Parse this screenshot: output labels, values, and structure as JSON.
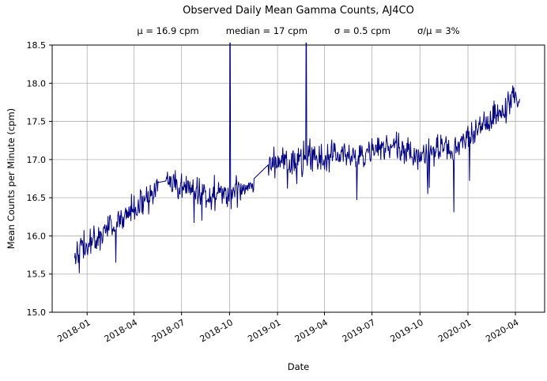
{
  "title": "Observed Daily Mean Gamma Counts, AJ4CO",
  "stats_display": [
    "μ = 16.9 cpm",
    "median = 17 cpm",
    "σ = 0.5 cpm",
    "σ/μ = 3%"
  ],
  "chart_data": {
    "type": "line",
    "title": "Observed Daily Mean Gamma Counts, AJ4CO",
    "subtitle_stats": {
      "mu": "16.9 cpm",
      "median": "17 cpm",
      "sigma": "0.5 cpm",
      "sigma_over_mu": "3%"
    },
    "xlabel": "Date",
    "ylabel": "Mean Counts per Minute (cpm)",
    "series_name": "observed daily mean gamma counts",
    "x_range": [
      "2017-10-26",
      "2020-05-27"
    ],
    "ylim": [
      15.0,
      18.5
    ],
    "grid": true,
    "legend": "none",
    "line_color": "#000080",
    "grid_color": "#b0b0b0",
    "axis_color": "#000000",
    "background_color": "#ffffff",
    "x_ticks": [
      {
        "date": "2018-01-01",
        "label": "2018-01"
      },
      {
        "date": "2018-04-01",
        "label": "2018-04"
      },
      {
        "date": "2018-07-01",
        "label": "2018-07"
      },
      {
        "date": "2018-10-01",
        "label": "2018-10"
      },
      {
        "date": "2019-01-01",
        "label": "2019-01"
      },
      {
        "date": "2019-04-01",
        "label": "2019-04"
      },
      {
        "date": "2019-07-01",
        "label": "2019-07"
      },
      {
        "date": "2019-10-01",
        "label": "2019-10"
      },
      {
        "date": "2020-01-01",
        "label": "2020-01"
      },
      {
        "date": "2020-04-01",
        "label": "2020-04"
      }
    ],
    "y_ticks": [
      {
        "value": 15.0,
        "label": "15.0"
      },
      {
        "value": 15.5,
        "label": "15.5"
      },
      {
        "value": 16.0,
        "label": "16.0"
      },
      {
        "value": 16.5,
        "label": "16.5"
      },
      {
        "value": 17.0,
        "label": "17.0"
      },
      {
        "value": 17.5,
        "label": "17.5"
      },
      {
        "value": 18.0,
        "label": "18.0"
      },
      {
        "value": 18.5,
        "label": "18.5"
      }
    ],
    "trend_anchors": [
      [
        "2017-12-08",
        15.8
      ],
      [
        "2018-01-01",
        15.86
      ],
      [
        "2018-02-01",
        16.05
      ],
      [
        "2018-03-01",
        16.18
      ],
      [
        "2018-04-01",
        16.35
      ],
      [
        "2018-05-01",
        16.5
      ],
      [
        "2018-05-17",
        16.66
      ],
      [
        "2018-06-02",
        16.7
      ],
      [
        "2018-06-20",
        16.65
      ],
      [
        "2018-07-10",
        16.62
      ],
      [
        "2018-08-01",
        16.58
      ],
      [
        "2018-09-01",
        16.55
      ],
      [
        "2018-09-25",
        16.55
      ],
      [
        "2018-10-10",
        16.6
      ],
      [
        "2018-11-01",
        16.65
      ],
      [
        "2018-11-16",
        16.72
      ],
      [
        "2018-12-15",
        16.95
      ],
      [
        "2019-01-01",
        17.0
      ],
      [
        "2019-02-01",
        16.95
      ],
      [
        "2019-03-01",
        17.0
      ],
      [
        "2019-04-01",
        17.02
      ],
      [
        "2019-05-01",
        17.08
      ],
      [
        "2019-06-01",
        17.02
      ],
      [
        "2019-07-01",
        17.1
      ],
      [
        "2019-08-01",
        17.18
      ],
      [
        "2019-09-01",
        17.12
      ],
      [
        "2019-10-01",
        17.05
      ],
      [
        "2019-11-01",
        17.12
      ],
      [
        "2019-12-01",
        17.1
      ],
      [
        "2020-01-01",
        17.28
      ],
      [
        "2020-02-01",
        17.45
      ],
      [
        "2020-03-01",
        17.55
      ],
      [
        "2020-03-27",
        17.8
      ],
      [
        "2020-04-09",
        17.75
      ]
    ],
    "data_gaps": [
      {
        "start": "2018-05-18",
        "end": "2018-06-01",
        "start_value": 16.7,
        "end_value": 16.72
      },
      {
        "start": "2018-11-17",
        "end": "2018-12-14",
        "start_value": 16.75,
        "end_value": 16.93
      }
    ],
    "offscale_spikes": [
      {
        "date": "2018-10-02",
        "value": 19.5,
        "clipped_at": 18.5
      },
      {
        "date": "2019-02-25",
        "value": 19.5,
        "clipped_at": 18.5
      }
    ],
    "notable_dips": [
      [
        "2018-02-25",
        15.65
      ],
      [
        "2018-07-25",
        16.17
      ],
      [
        "2018-08-09",
        16.2
      ],
      [
        "2018-09-27",
        16.38
      ],
      [
        "2018-10-04",
        16.35
      ],
      [
        "2019-01-20",
        16.62
      ],
      [
        "2019-02-07",
        16.68
      ],
      [
        "2019-06-02",
        16.47
      ],
      [
        "2019-10-16",
        16.55
      ],
      [
        "2019-10-19",
        16.63
      ],
      [
        "2019-12-05",
        16.31
      ],
      [
        "2020-01-04",
        16.72
      ]
    ],
    "noise_sd": 0.095,
    "noise_seed": 42
  }
}
